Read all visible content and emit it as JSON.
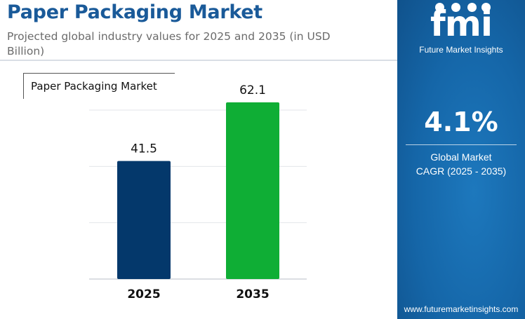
{
  "header": {
    "title": "Paper Packaging Market",
    "subtitle": "Projected global industry values for 2025 and 2035 (in USD Billion)"
  },
  "legend": {
    "label": "Paper Packaging Market"
  },
  "sidebar": {
    "logo_text": "fmi",
    "logo_subtitle": "Future Market Insights",
    "cagr_value": "4.1%",
    "cagr_label_line1": "Global Market",
    "cagr_label_line2": "CAGR (2025 - 2035)",
    "website": "www.futuremarketinsights.com",
    "colors": {
      "background": "#1566a8",
      "text": "#ffffff"
    }
  },
  "chart_data": {
    "type": "bar",
    "categories": [
      "2025",
      "2035"
    ],
    "values": [
      41.5,
      62.1
    ],
    "data_labels": [
      "41.5",
      "62.1"
    ],
    "bar_colors": [
      "#04386b",
      "#0fae35"
    ],
    "title": "Paper Packaging Market",
    "ylim": [
      0,
      70
    ],
    "grid": true,
    "legend_placement": "top-left",
    "colors": {
      "title": "#1a5a99",
      "grid": "#e3e6ea",
      "axis": "#cfd4da"
    }
  }
}
